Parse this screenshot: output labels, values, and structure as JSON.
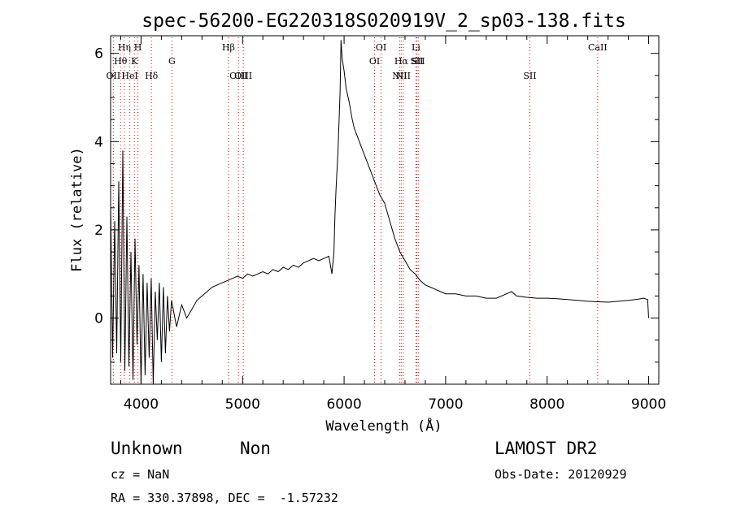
{
  "chart_data": {
    "type": "line",
    "title": "spec-56200-EG220318S020919V_2_sp03-138.fits",
    "xlabel": "Wavelength (Å)",
    "ylabel": "Flux (relative)",
    "xlim": [
      3700,
      9100
    ],
    "ylim": [
      -1.5,
      6.4
    ],
    "xticks": [
      4000,
      5000,
      6000,
      7000,
      8000,
      9000
    ],
    "yticks": [
      0,
      2,
      4,
      6
    ],
    "grid": false,
    "series": [
      {
        "x": [
          3700,
          3720,
          3740,
          3760,
          3780,
          3800,
          3820,
          3840,
          3860,
          3880,
          3900,
          3920,
          3940,
          3960,
          3980,
          4000,
          4020,
          4040,
          4060,
          4080,
          4100,
          4120,
          4140,
          4160,
          4180,
          4200,
          4220,
          4240,
          4260,
          4280,
          4300,
          4350,
          4400,
          4450,
          4500,
          4550,
          4600,
          4650,
          4700,
          4750,
          4800,
          4850,
          4900,
          4950,
          5000,
          5050,
          5100,
          5150,
          5200,
          5250,
          5300,
          5350,
          5400,
          5450,
          5500,
          5550,
          5600,
          5650,
          5700,
          5750,
          5800,
          5850,
          5880,
          5900,
          5910,
          5920,
          5940,
          5960,
          5970,
          5980,
          6000,
          6020,
          6050,
          6080,
          6100,
          6150,
          6200,
          6250,
          6300,
          6350,
          6400,
          6450,
          6500,
          6550,
          6600,
          6650,
          6700,
          6750,
          6800,
          6850,
          6900,
          6950,
          7000,
          7100,
          7200,
          7300,
          7400,
          7500,
          7600,
          7650,
          7700,
          7800,
          7900,
          8000,
          8100,
          8200,
          8300,
          8400,
          8500,
          8600,
          8700,
          8800,
          8900,
          8950,
          8990,
          9000
        ],
        "values": [
          2.6,
          -0.9,
          2.2,
          -0.8,
          3.1,
          -1.0,
          3.8,
          -1.2,
          2.3,
          -1.1,
          1.5,
          -1.4,
          1.8,
          -0.6,
          1.2,
          -1.5,
          1.0,
          -1.3,
          0.8,
          -0.9,
          0.9,
          -1.5,
          0.6,
          -0.5,
          0.8,
          -1.0,
          0.7,
          -0.8,
          0.5,
          -0.3,
          0.4,
          -0.2,
          0.3,
          0.0,
          0.2,
          0.4,
          0.5,
          0.6,
          0.7,
          0.75,
          0.8,
          0.85,
          0.9,
          0.95,
          0.9,
          1.0,
          0.95,
          1.0,
          1.05,
          1.0,
          1.1,
          1.05,
          1.15,
          1.1,
          1.2,
          1.15,
          1.25,
          1.3,
          1.35,
          1.3,
          1.35,
          1.4,
          1.0,
          1.5,
          2.3,
          2.9,
          3.8,
          5.1,
          6.3,
          5.9,
          5.6,
          5.2,
          4.9,
          4.5,
          4.3,
          4.0,
          3.7,
          3.4,
          3.1,
          2.8,
          2.6,
          2.2,
          1.8,
          1.5,
          1.3,
          1.1,
          1.0,
          0.85,
          0.75,
          0.7,
          0.65,
          0.6,
          0.55,
          0.55,
          0.5,
          0.5,
          0.45,
          0.45,
          0.55,
          0.6,
          0.5,
          0.47,
          0.45,
          0.45,
          0.44,
          0.42,
          0.4,
          0.38,
          0.37,
          0.36,
          0.38,
          0.4,
          0.43,
          0.45,
          0.42,
          0.0
        ]
      }
    ],
    "line_markers": [
      {
        "label": "OII",
        "x": 3727,
        "row": 3
      },
      {
        "label": "Hθ",
        "x": 3798,
        "row": 2
      },
      {
        "label": "Hη",
        "x": 3835,
        "row": 1
      },
      {
        "label": "HeI",
        "x": 3889,
        "row": 3
      },
      {
        "label": "K",
        "x": 3934,
        "row": 2
      },
      {
        "label": "H",
        "x": 3969,
        "row": 1
      },
      {
        "label": "Hδ",
        "x": 4102,
        "row": 3
      },
      {
        "label": "G",
        "x": 4304,
        "row": 2
      },
      {
        "label": "Hβ",
        "x": 4861,
        "row": 1
      },
      {
        "label": "OIII",
        "x": 4959,
        "row": 3
      },
      {
        "label": "OIII",
        "x": 5007,
        "row": 3
      },
      {
        "label": "OI",
        "x": 6300,
        "row": 2
      },
      {
        "label": "OI",
        "x": 6364,
        "row": 1
      },
      {
        "label": "NII",
        "x": 6548,
        "row": 3
      },
      {
        "label": "Hα",
        "x": 6563,
        "row": 2
      },
      {
        "label": "NII",
        "x": 6583,
        "row": 3
      },
      {
        "label": "Li",
        "x": 6708,
        "row": 1
      },
      {
        "label": "SII",
        "x": 6716,
        "row": 2
      },
      {
        "label": "SII",
        "x": 6731,
        "row": 2
      },
      {
        "label": "SII",
        "x": 7830,
        "row": 3
      },
      {
        "label": "CaII",
        "x": 8498,
        "row": 1
      }
    ],
    "marker_color": "#ff0000"
  },
  "footer": {
    "object_class": "Unknown",
    "subclass": "Non",
    "survey": "LAMOST DR2",
    "redshift_line": "cz = NaN",
    "obs_date_line": "Obs-Date: 20120929",
    "coords_line": "RA = 330.37898, DEC =  -1.57232"
  }
}
